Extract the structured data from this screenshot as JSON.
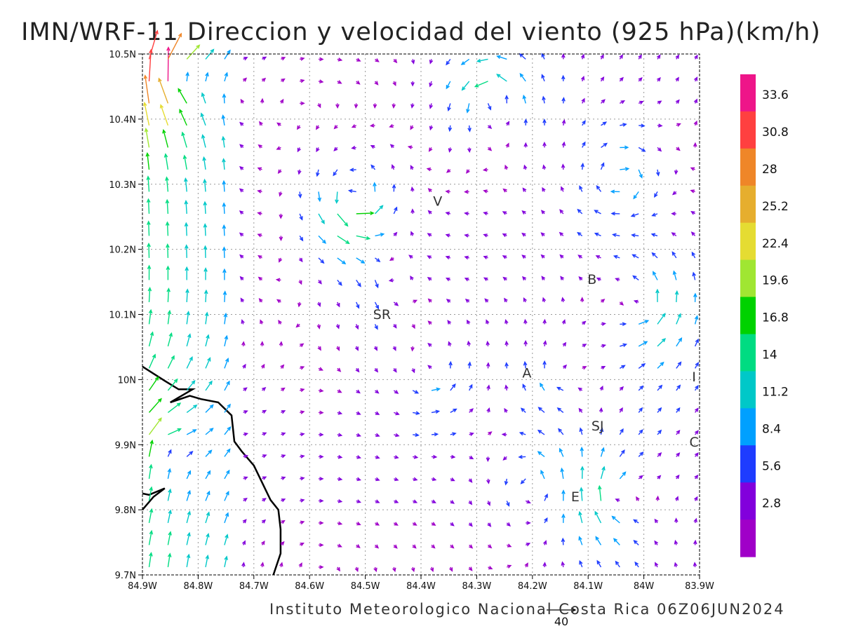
{
  "chart_data": {
    "type": "vector-field",
    "title": "IMN/WRF-11 Direccion y velocidad del viento (925 hPa)(km/h)",
    "footer": "Instituto Meteorologico Nacional Costa Rica  06Z06JUN2024",
    "xlim": [
      -84.9,
      -83.9
    ],
    "ylim": [
      9.7,
      10.5
    ],
    "x_ticks": [
      {
        "value": -84.9,
        "label": "84.9W"
      },
      {
        "value": -84.8,
        "label": "84.8W"
      },
      {
        "value": -84.7,
        "label": "84.7W"
      },
      {
        "value": -84.6,
        "label": "84.6W"
      },
      {
        "value": -84.5,
        "label": "84.5W"
      },
      {
        "value": -84.4,
        "label": "84.4W"
      },
      {
        "value": -84.3,
        "label": "84.3W"
      },
      {
        "value": -84.2,
        "label": "84.2W"
      },
      {
        "value": -84.1,
        "label": "84.1W"
      },
      {
        "value": -84.0,
        "label": "84W"
      },
      {
        "value": -83.9,
        "label": "83.9W"
      }
    ],
    "y_ticks": [
      {
        "value": 9.7,
        "label": "9.7N"
      },
      {
        "value": 9.8,
        "label": "9.8N"
      },
      {
        "value": 9.9,
        "label": "9.9N"
      },
      {
        "value": 10.0,
        "label": "10N"
      },
      {
        "value": 10.1,
        "label": "10.1N"
      },
      {
        "value": 10.2,
        "label": "10.2N"
      },
      {
        "value": 10.3,
        "label": "10.3N"
      },
      {
        "value": 10.4,
        "label": "10.4N"
      },
      {
        "value": 10.5,
        "label": "10.5N"
      }
    ],
    "grid": true,
    "colorbar": {
      "placement": "right",
      "labels": [
        "33.6",
        "30.8",
        "28",
        "25.2",
        "22.4",
        "19.6",
        "16.8",
        "14",
        "11.2",
        "8.4",
        "5.6",
        "2.8"
      ],
      "colors_top_to_bottom": [
        "#ee1589",
        "#ff4040",
        "#ef8628",
        "#e6ae2e",
        "#e5dc32",
        "#a0e632",
        "#00d200",
        "#00dc82",
        "#00c8c8",
        "#00a0ff",
        "#1e3cff",
        "#8200dc",
        "#a000c8"
      ]
    },
    "reference_vector": {
      "label": "40"
    },
    "places": [
      {
        "label": "V",
        "lon": -84.37,
        "lat": 10.267
      },
      {
        "label": "B",
        "lon": -84.093,
        "lat": 10.147
      },
      {
        "label": "SR",
        "lon": -84.47,
        "lat": 10.093
      },
      {
        "label": "A",
        "lon": -84.21,
        "lat": 10.003
      },
      {
        "label": "SJ",
        "lon": -84.083,
        "lat": 9.922
      },
      {
        "label": "C",
        "lon": -83.91,
        "lat": 9.897
      },
      {
        "label": "E",
        "lon": -84.123,
        "lat": 9.813
      },
      {
        "label": "I",
        "lon": -83.91,
        "lat": 9.997
      }
    ],
    "coastline": [
      [
        -84.9,
        10.02
      ],
      [
        -84.86,
        9.998
      ],
      [
        -84.835,
        9.985
      ],
      [
        -84.81,
        9.985
      ],
      [
        -84.85,
        9.965
      ],
      [
        -84.815,
        9.975
      ],
      [
        -84.795,
        9.97
      ],
      [
        -84.764,
        9.965
      ],
      [
        -84.74,
        9.945
      ],
      [
        -84.735,
        9.905
      ],
      [
        -84.722,
        9.89
      ],
      [
        -84.7,
        9.868
      ],
      [
        -84.67,
        9.815
      ],
      [
        -84.656,
        9.8
      ],
      [
        -84.652,
        9.77
      ],
      [
        -84.652,
        9.733
      ],
      [
        -84.665,
        9.7
      ]
    ],
    "coastline2": [
      [
        -84.9,
        9.8
      ],
      [
        -84.88,
        9.82
      ],
      [
        -84.86,
        9.833
      ],
      [
        -84.888,
        9.823
      ],
      [
        -84.9,
        9.825
      ]
    ],
    "jet_centers": [
      {
        "lon": -84.52,
        "lat": 10.27,
        "strength": 22
      },
      {
        "lon": -84.84,
        "lat": 10.46,
        "strength": 22
      },
      {
        "lon": -84.27,
        "lat": 10.44,
        "strength": 16
      },
      {
        "lon": -84.04,
        "lat": 10.31,
        "strength": 14
      },
      {
        "lon": -84.0,
        "lat": 10.11,
        "strength": 12
      },
      {
        "lon": -84.05,
        "lat": 9.815,
        "strength": 12
      },
      {
        "lon": -84.2,
        "lat": 9.84,
        "strength": 10
      },
      {
        "lon": -84.87,
        "lat": 9.9,
        "strength": 12
      },
      {
        "lon": -84.38,
        "lat": 10.0,
        "strength": 8
      },
      {
        "lon": -84.15,
        "lat": 10.0,
        "strength": 7
      },
      {
        "lon": -84.45,
        "lat": 10.15,
        "strength": 8
      }
    ]
  }
}
